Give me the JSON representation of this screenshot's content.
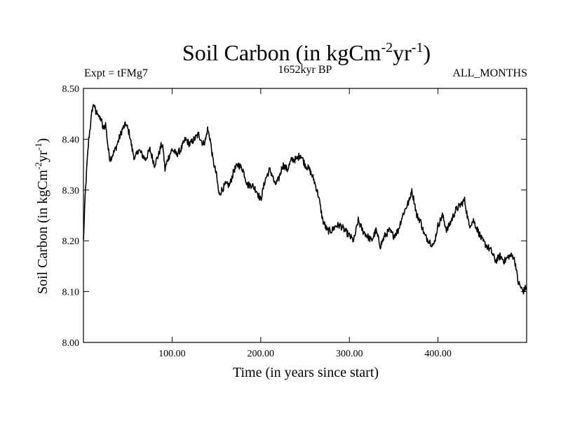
{
  "chart_data": {
    "type": "line",
    "title": "Soil Carbon (in kgCm",
    "title_exp1": "-2",
    "title_mid": "yr",
    "title_exp2": "-1",
    "title_end": ")",
    "subtitle_left": "Expt = tFMg7",
    "subtitle_center": "1652kyr BP",
    "subtitle_right": "ALL_MONTHS",
    "xlabel": "Time (in years since start)",
    "ylabel": "Soil Carbon (in kgCm",
    "ylabel_exp1": "-2",
    "ylabel_mid": "yr",
    "ylabel_exp2": "-1",
    "ylabel_end": ")",
    "xlim": [
      0,
      500
    ],
    "ylim": [
      8.0,
      8.5
    ],
    "x_ticks": [
      {
        "value": 100,
        "label": "100.00"
      },
      {
        "value": 200,
        "label": "200.00"
      },
      {
        "value": 300,
        "label": "300.00"
      },
      {
        "value": 400,
        "label": "400.00"
      }
    ],
    "y_ticks": [
      {
        "value": 8.0,
        "label": "8.00"
      },
      {
        "value": 8.1,
        "label": "8.10"
      },
      {
        "value": 8.2,
        "label": "8.20"
      },
      {
        "value": 8.3,
        "label": "8.30"
      },
      {
        "value": 8.4,
        "label": "8.40"
      },
      {
        "value": 8.5,
        "label": "8.50"
      }
    ],
    "series": [
      {
        "name": "Soil Carbon",
        "color": "#000000",
        "x": [
          0,
          2,
          4,
          6,
          8,
          10,
          12,
          14,
          16,
          18,
          20,
          22,
          25,
          28,
          30,
          33,
          36,
          40,
          44,
          48,
          50,
          52,
          55,
          58,
          62,
          66,
          70,
          75,
          80,
          85,
          88,
          90,
          92,
          95,
          100,
          105,
          110,
          115,
          120,
          125,
          130,
          135,
          138,
          140,
          143,
          146,
          150,
          153,
          156,
          160,
          165,
          170,
          175,
          180,
          185,
          190,
          195,
          200,
          205,
          210,
          213,
          216,
          220,
          225,
          230,
          235,
          240,
          245,
          250,
          255,
          260,
          265,
          270,
          275,
          280,
          285,
          290,
          295,
          300,
          305,
          310,
          315,
          320,
          325,
          330,
          335,
          340,
          345,
          350,
          355,
          360,
          365,
          368,
          370,
          373,
          376,
          380,
          385,
          390,
          395,
          400,
          405,
          410,
          415,
          420,
          425,
          430,
          435,
          440,
          445,
          450,
          455,
          460,
          465,
          470,
          475,
          480,
          485,
          488,
          490,
          493,
          496,
          500
        ],
        "y": [
          8.2,
          8.29,
          8.35,
          8.4,
          8.43,
          8.46,
          8.47,
          8.45,
          8.455,
          8.44,
          8.44,
          8.42,
          8.43,
          8.38,
          8.36,
          8.37,
          8.38,
          8.4,
          8.42,
          8.43,
          8.42,
          8.41,
          8.38,
          8.36,
          8.38,
          8.37,
          8.36,
          8.38,
          8.35,
          8.37,
          8.39,
          8.38,
          8.34,
          8.36,
          8.38,
          8.37,
          8.38,
          8.4,
          8.39,
          8.4,
          8.41,
          8.39,
          8.4,
          8.42,
          8.4,
          8.36,
          8.33,
          8.29,
          8.3,
          8.31,
          8.31,
          8.34,
          8.35,
          8.34,
          8.31,
          8.31,
          8.3,
          8.28,
          8.32,
          8.34,
          8.33,
          8.31,
          8.32,
          8.35,
          8.34,
          8.36,
          8.36,
          8.37,
          8.35,
          8.34,
          8.32,
          8.29,
          8.24,
          8.22,
          8.22,
          8.23,
          8.23,
          8.22,
          8.21,
          8.2,
          8.24,
          8.22,
          8.21,
          8.2,
          8.22,
          8.19,
          8.21,
          8.22,
          8.21,
          8.22,
          8.25,
          8.27,
          8.28,
          8.3,
          8.28,
          8.25,
          8.24,
          8.21,
          8.2,
          8.19,
          8.23,
          8.25,
          8.22,
          8.24,
          8.26,
          8.27,
          8.28,
          8.23,
          8.24,
          8.22,
          8.2,
          8.19,
          8.18,
          8.16,
          8.17,
          8.16,
          8.17,
          8.17,
          8.15,
          8.12,
          8.11,
          8.1,
          8.11
        ]
      }
    ]
  }
}
